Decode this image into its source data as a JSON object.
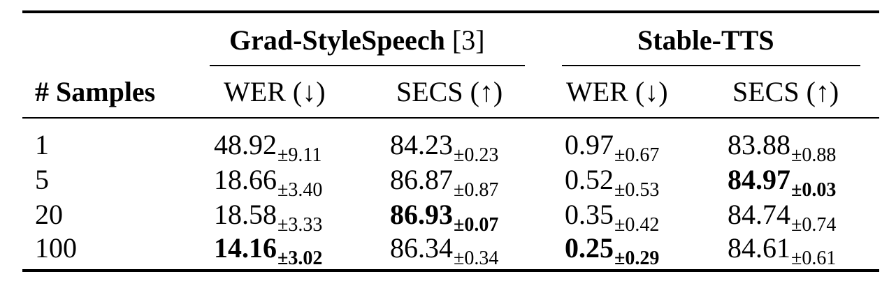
{
  "table": {
    "group_headers": [
      {
        "name": "Grad-StyleSpeech",
        "cite": " [3]"
      },
      {
        "name": "Stable-TTS",
        "cite": ""
      }
    ],
    "column_headers": [
      "# Samples",
      "WER (↓)",
      "SECS (↑)",
      "WER (↓)",
      "SECS (↑)"
    ],
    "rows": [
      {
        "samples": "1",
        "cells": [
          {
            "value": "48.92",
            "pm": "±9.11",
            "bold": false
          },
          {
            "value": "84.23",
            "pm": "±0.23",
            "bold": false
          },
          {
            "value": "0.97",
            "pm": "±0.67",
            "bold": false
          },
          {
            "value": "83.88",
            "pm": "±0.88",
            "bold": false
          }
        ]
      },
      {
        "samples": "5",
        "cells": [
          {
            "value": "18.66",
            "pm": "±3.40",
            "bold": false
          },
          {
            "value": "86.87",
            "pm": "±0.87",
            "bold": false
          },
          {
            "value": "0.52",
            "pm": "±0.53",
            "bold": false
          },
          {
            "value": "84.97",
            "pm": "±0.03",
            "bold": true
          }
        ]
      },
      {
        "samples": "20",
        "cells": [
          {
            "value": "18.58",
            "pm": "±3.33",
            "bold": false
          },
          {
            "value": "86.93",
            "pm": "±0.07",
            "bold": true
          },
          {
            "value": "0.35",
            "pm": "±0.42",
            "bold": false
          },
          {
            "value": "84.74",
            "pm": "±0.74",
            "bold": false
          }
        ]
      },
      {
        "samples": "100",
        "cells": [
          {
            "value": "14.16",
            "pm": "±3.02",
            "bold": true
          },
          {
            "value": "86.34",
            "pm": "±0.34",
            "bold": false
          },
          {
            "value": "0.25",
            "pm": "±0.29",
            "bold": true
          },
          {
            "value": "84.61",
            "pm": "±0.61",
            "bold": false
          }
        ]
      }
    ]
  }
}
